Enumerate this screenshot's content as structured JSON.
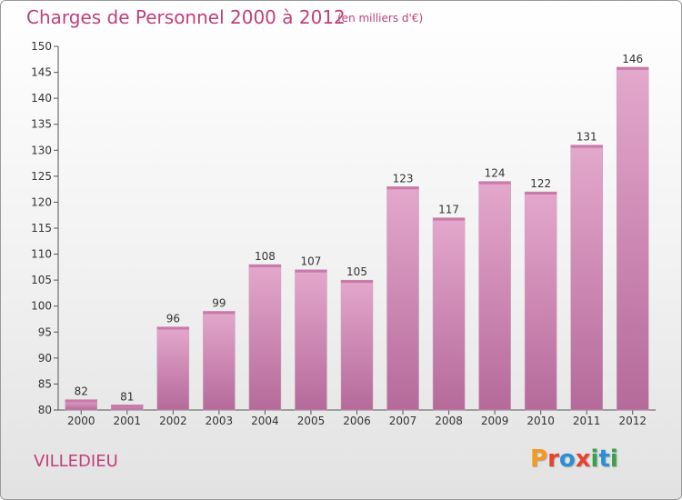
{
  "header": {
    "title": "Charges de Personnel 2000 à 2012",
    "subtitle": "(en milliers d'€)"
  },
  "footer": {
    "commune": "VILLEDIEU",
    "logo": "Proxiti",
    "logo_colors": [
      "#f39a1f",
      "#e8422f",
      "#2c8fd6",
      "#e8422f",
      "#3aa14a",
      "#2c8fd6",
      "#3aa14a"
    ]
  },
  "colors": {
    "bar_top": "#e4a8cc",
    "bar_bottom": "#b56a9a",
    "title": "#c0407a"
  },
  "chart_data": {
    "type": "bar",
    "categories": [
      "2000",
      "2001",
      "2002",
      "2003",
      "2004",
      "2005",
      "2006",
      "2007",
      "2008",
      "2009",
      "2010",
      "2011",
      "2012"
    ],
    "values": [
      82,
      81,
      96,
      99,
      108,
      107,
      105,
      123,
      117,
      124,
      122,
      131,
      146
    ],
    "data_labels": [
      "82",
      "81",
      "96",
      "99",
      "108",
      "107",
      "105",
      "123",
      "117",
      "124",
      "122",
      "131",
      "146"
    ],
    "title": "Charges de Personnel 2000 à 2012",
    "xlabel": "",
    "ylabel": "",
    "ylim": [
      80,
      150
    ],
    "yticks": [
      80,
      85,
      90,
      95,
      100,
      105,
      110,
      115,
      120,
      125,
      130,
      135,
      140,
      145,
      150
    ],
    "grid": false,
    "legend": "none"
  }
}
